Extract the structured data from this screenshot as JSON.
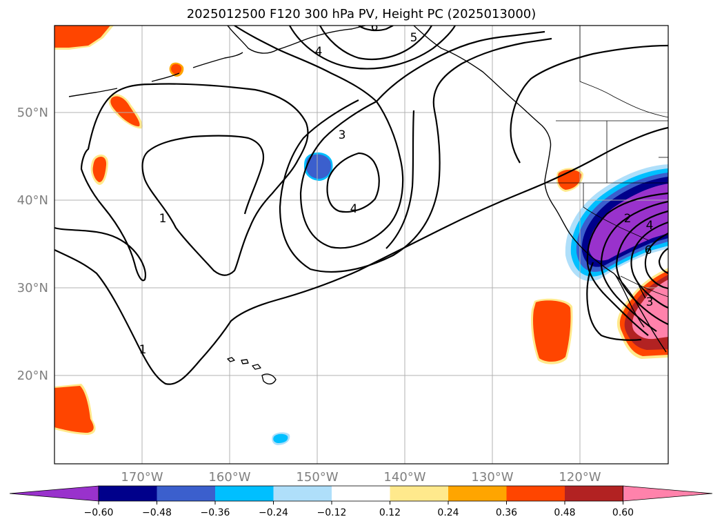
{
  "title": "2025012500 F120 300 hPa PV, Height PC (2025013000)",
  "map": {
    "lon_range": [
      -180,
      -110
    ],
    "lat_range": [
      10,
      60
    ],
    "lat_labels": [
      "50°N",
      "40°N",
      "30°N",
      "20°N"
    ],
    "lon_labels": [
      "170°W",
      "160°W",
      "150°W",
      "140°W",
      "130°W",
      "120°W"
    ],
    "contour_labels": [
      "6",
      "5",
      "4",
      "3",
      "4",
      "1",
      "1",
      "2",
      "4",
      "6",
      "3"
    ]
  },
  "colorbar": {
    "ticks": [
      "−0.60",
      "−0.48",
      "−0.36",
      "−0.24",
      "−0.12",
      "0.12",
      "0.24",
      "0.36",
      "0.48",
      "0.60"
    ],
    "colors": [
      "#9932cc",
      "#00008b",
      "#3b5fcd",
      "#00bfff",
      "#afdffa",
      "#ffffff",
      "#ffe98c",
      "#ffa500",
      "#ff4500",
      "#b22222",
      "#ff82ab"
    ]
  }
}
